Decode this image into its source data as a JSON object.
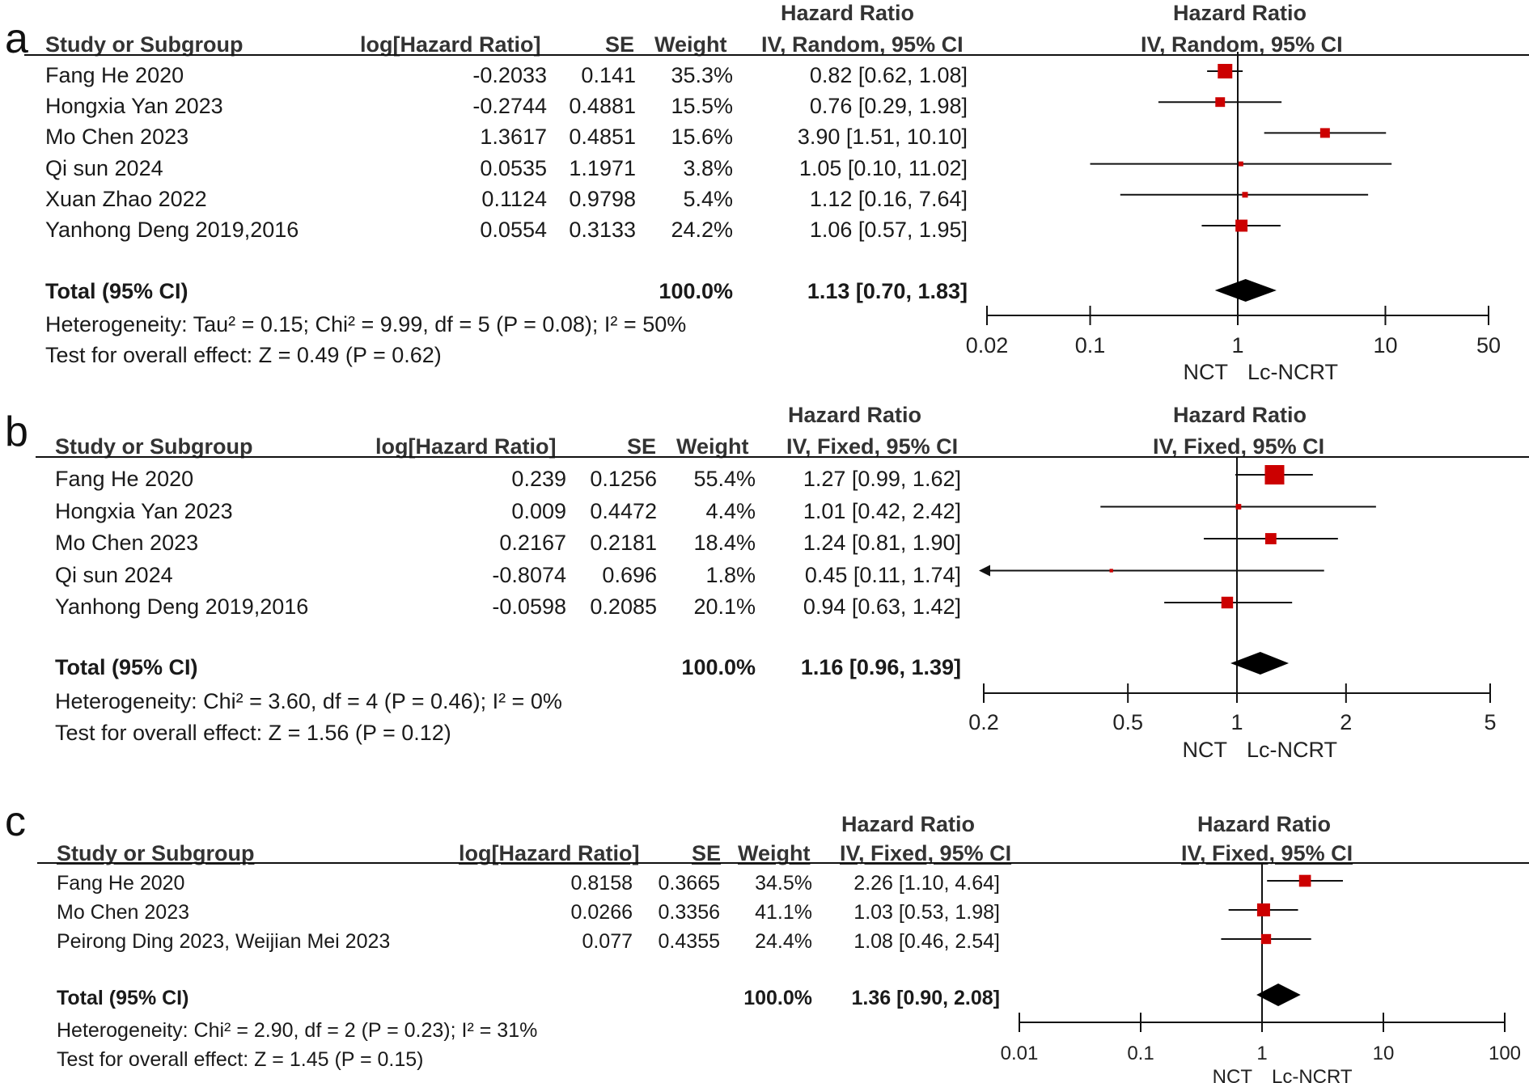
{
  "chart_data": [
    {
      "panel": "a",
      "type": "forest",
      "headers": {
        "study": "Study or Subgroup",
        "loghr": "log[Hazard Ratio]",
        "se": "SE",
        "weight": "Weight",
        "hr_top": "Hazard Ratio",
        "hr_sub": "IV, Random, 95% CI",
        "plot_top": "Hazard Ratio",
        "plot_sub": "IV, Random, 95% CI"
      },
      "studies": [
        {
          "name": "Fang He 2020",
          "loghr": "-0.2033",
          "se": "0.141",
          "weight": "35.3%",
          "ci_text": "0.82 [0.62, 1.08]",
          "hr": 0.82,
          "lo": 0.62,
          "hi": 1.08,
          "w": 35.3
        },
        {
          "name": "Hongxia Yan 2023",
          "loghr": "-0.2744",
          "se": "0.4881",
          "weight": "15.5%",
          "ci_text": "0.76 [0.29, 1.98]",
          "hr": 0.76,
          "lo": 0.29,
          "hi": 1.98,
          "w": 15.5
        },
        {
          "name": "Mo Chen 2023",
          "loghr": "1.3617",
          "se": "0.4851",
          "weight": "15.6%",
          "ci_text": "3.90 [1.51, 10.10]",
          "hr": 3.9,
          "lo": 1.51,
          "hi": 10.1,
          "w": 15.6
        },
        {
          "name": "Qi sun 2024",
          "loghr": "0.0535",
          "se": "1.1971",
          "weight": "3.8%",
          "ci_text": "1.05 [0.10, 11.02]",
          "hr": 1.05,
          "lo": 0.1,
          "hi": 11.02,
          "w": 3.8
        },
        {
          "name": "Xuan Zhao 2022",
          "loghr": "0.1124",
          "se": "0.9798",
          "weight": "5.4%",
          "ci_text": "1.12 [0.16, 7.64]",
          "hr": 1.12,
          "lo": 0.16,
          "hi": 7.64,
          "w": 5.4
        },
        {
          "name": "Yanhong Deng 2019,2016",
          "loghr": "0.0554",
          "se": "0.3133",
          "weight": "24.2%",
          "ci_text": "1.06 [0.57, 1.95]",
          "hr": 1.06,
          "lo": 0.57,
          "hi": 1.95,
          "w": 24.2
        }
      ],
      "total": {
        "label": "Total (95% CI)",
        "weight": "100.0%",
        "ci_text": "1.13 [0.70, 1.83]",
        "hr": 1.13,
        "lo": 0.7,
        "hi": 1.83
      },
      "heterogeneity": "Heterogeneity: Tau² = 0.15; Chi² = 9.99, df = 5 (P = 0.08); I² = 50%",
      "overall": "Test for overall effect: Z = 0.49 (P = 0.62)",
      "xscale": "log",
      "xlim": [
        0.02,
        50
      ],
      "ticks": [
        0.02,
        0.1,
        1,
        10,
        50
      ],
      "tick_labels": [
        "0.02",
        "0.1",
        "1",
        "10",
        "50"
      ],
      "left_label": "NCT",
      "right_label": "Lc-NCRT"
    },
    {
      "panel": "b",
      "type": "forest",
      "headers": {
        "study": "Study or Subgroup",
        "loghr": "log[Hazard Ratio]",
        "se": "SE",
        "weight": "Weight",
        "hr_top": "Hazard Ratio",
        "hr_sub": "IV, Fixed, 95% CI",
        "plot_top": "Hazard Ratio",
        "plot_sub": "IV, Fixed, 95% CI"
      },
      "studies": [
        {
          "name": "Fang He 2020",
          "loghr": "0.239",
          "se": "0.1256",
          "weight": "55.4%",
          "ci_text": "1.27 [0.99, 1.62]",
          "hr": 1.27,
          "lo": 0.99,
          "hi": 1.62,
          "w": 55.4
        },
        {
          "name": "Hongxia Yan 2023",
          "loghr": "0.009",
          "se": "0.4472",
          "weight": "4.4%",
          "ci_text": "1.01 [0.42, 2.42]",
          "hr": 1.01,
          "lo": 0.42,
          "hi": 2.42,
          "w": 4.4
        },
        {
          "name": "Mo Chen 2023",
          "loghr": "0.2167",
          "se": "0.2181",
          "weight": "18.4%",
          "ci_text": "1.24 [0.81, 1.90]",
          "hr": 1.24,
          "lo": 0.81,
          "hi": 1.9,
          "w": 18.4
        },
        {
          "name": "Qi sun 2024",
          "loghr": "-0.8074",
          "se": "0.696",
          "weight": "1.8%",
          "ci_text": "0.45 [0.11, 1.74]",
          "hr": 0.45,
          "lo": 0.11,
          "hi": 1.74,
          "w": 1.8
        },
        {
          "name": "Yanhong Deng 2019,2016",
          "loghr": "-0.0598",
          "se": "0.2085",
          "weight": "20.1%",
          "ci_text": "0.94 [0.63, 1.42]",
          "hr": 0.94,
          "lo": 0.63,
          "hi": 1.42,
          "w": 20.1
        }
      ],
      "total": {
        "label": "Total (95% CI)",
        "weight": "100.0%",
        "ci_text": "1.16 [0.96, 1.39]",
        "hr": 1.16,
        "lo": 0.96,
        "hi": 1.39
      },
      "heterogeneity": "Heterogeneity: Chi² = 3.60, df = 4 (P = 0.46); I² = 0%",
      "overall": "Test for overall effect: Z = 1.56 (P = 0.12)",
      "xscale": "log",
      "xlim": [
        0.2,
        5
      ],
      "ticks": [
        0.2,
        0.5,
        1,
        2,
        5
      ],
      "tick_labels": [
        "0.2",
        "0.5",
        "1",
        "2",
        "5"
      ],
      "left_label": "NCT",
      "right_label": "Lc-NCRT"
    },
    {
      "panel": "c",
      "type": "forest",
      "headers": {
        "study": "Study or Subgroup",
        "loghr": "log[Hazard Ratio]",
        "se": "SE",
        "weight": "Weight",
        "hr_top": "Hazard Ratio",
        "hr_sub": "IV, Fixed, 95% CI",
        "plot_top": "Hazard Ratio",
        "plot_sub": "IV, Fixed, 95% CI"
      },
      "studies": [
        {
          "name": "Fang He 2020",
          "loghr": "0.8158",
          "se": "0.3665",
          "weight": "34.5%",
          "ci_text": "2.26 [1.10, 4.64]",
          "hr": 2.26,
          "lo": 1.1,
          "hi": 4.64,
          "w": 34.5
        },
        {
          "name": "Mo Chen 2023",
          "loghr": "0.0266",
          "se": "0.3356",
          "weight": "41.1%",
          "ci_text": "1.03 [0.53, 1.98]",
          "hr": 1.03,
          "lo": 0.53,
          "hi": 1.98,
          "w": 41.1
        },
        {
          "name": "Peirong Ding 2023, Weijian Mei 2023",
          "loghr": "0.077",
          "se": "0.4355",
          "weight": "24.4%",
          "ci_text": "1.08 [0.46, 2.54]",
          "hr": 1.08,
          "lo": 0.46,
          "hi": 2.54,
          "w": 24.4
        }
      ],
      "total": {
        "label": "Total (95% CI)",
        "weight": "100.0%",
        "ci_text": "1.36 [0.90, 2.08]",
        "hr": 1.36,
        "lo": 0.9,
        "hi": 2.08
      },
      "heterogeneity": "Heterogeneity: Chi² = 2.90, df = 2 (P = 0.23); I² = 31%",
      "overall": "Test for overall effect: Z = 1.45 (P = 0.15)",
      "xscale": "log",
      "xlim": [
        0.01,
        100
      ],
      "ticks": [
        0.01,
        0.1,
        1,
        10,
        100
      ],
      "tick_labels": [
        "0.01",
        "0.1",
        "1",
        "10",
        "100"
      ],
      "left_label": "NCT",
      "right_label": "Lc-NCRT"
    }
  ],
  "panel_labels": [
    "a",
    "b",
    "c"
  ],
  "colors": {
    "marker": "#cc0000",
    "diamond": "#000000",
    "line": "#111111"
  }
}
